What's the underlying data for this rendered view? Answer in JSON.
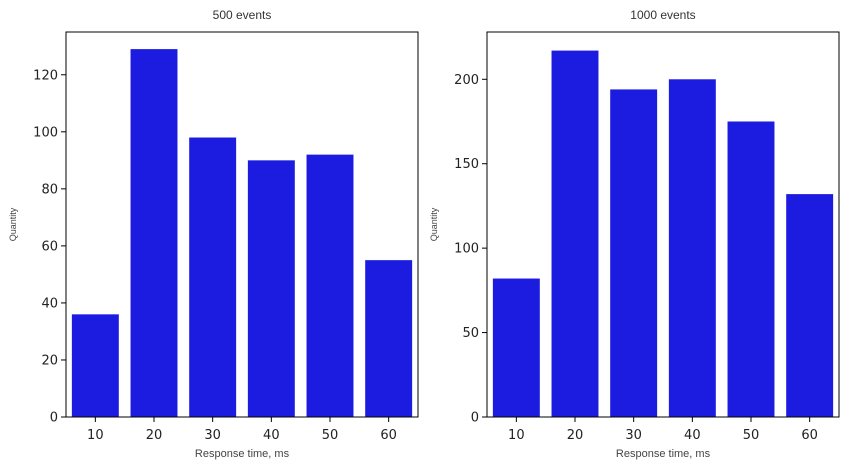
{
  "chart_data": [
    {
      "type": "bar",
      "title": "500 events",
      "xlabel": "Response time, ms",
      "ylabel": "Quantity",
      "categories": [
        "10",
        "20",
        "30",
        "40",
        "50",
        "60"
      ],
      "values": [
        36,
        129,
        98,
        90,
        92,
        55
      ],
      "ylim": [
        0,
        135
      ],
      "yticks": [
        0,
        20,
        40,
        60,
        80,
        100,
        120
      ],
      "bar_color": "#1c1ce0",
      "grid": false,
      "legend": "none"
    },
    {
      "type": "bar",
      "title": "1000 events",
      "xlabel": "Response time, ms",
      "ylabel": "Quantity",
      "categories": [
        "10",
        "20",
        "30",
        "40",
        "50",
        "60"
      ],
      "values": [
        82,
        217,
        194,
        200,
        175,
        132
      ],
      "ylim": [
        0,
        228
      ],
      "yticks": [
        0,
        50,
        100,
        150,
        200
      ],
      "bar_color": "#1c1ce0",
      "grid": false,
      "legend": "none"
    }
  ]
}
